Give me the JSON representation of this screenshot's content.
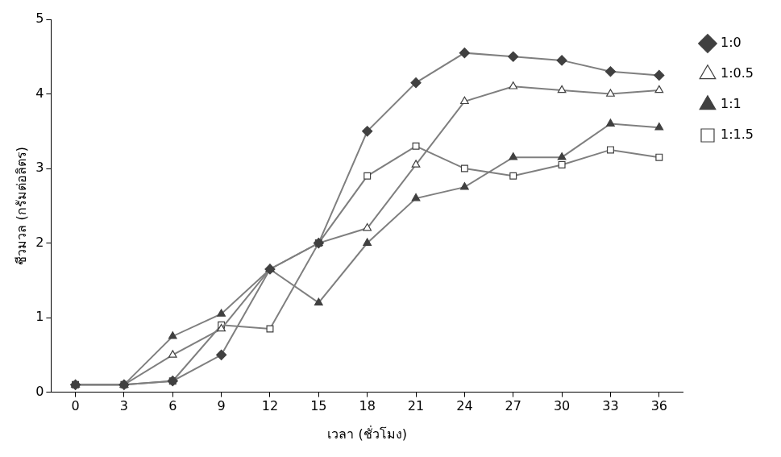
{
  "chart_data": {
    "type": "line",
    "x_label": "เวลา (ชั่วโมง)",
    "y_label": "ชีวมวล (กรัมต่อลิตร)",
    "categories": [
      0,
      3,
      6,
      9,
      12,
      15,
      18,
      21,
      24,
      27,
      30,
      33,
      36
    ],
    "ylim": [
      0,
      5
    ],
    "yticks": [
      0,
      1,
      2,
      3,
      4,
      5
    ],
    "grid": false,
    "legend": "right",
    "series": [
      {
        "name": "1:0",
        "color": "#7f7f7f",
        "marker": "diamond",
        "values": [
          0.1,
          0.1,
          0.15,
          0.5,
          1.65,
          2.0,
          3.5,
          4.15,
          4.55,
          4.5,
          4.45,
          4.3,
          4.25
        ]
      },
      {
        "name": "1:0.5",
        "color": "#7f7f7f",
        "marker": "triangle-open",
        "values": [
          0.1,
          0.1,
          0.5,
          0.85,
          1.65,
          2.0,
          2.2,
          3.05,
          3.9,
          4.1,
          4.05,
          4.0,
          4.05
        ]
      },
      {
        "name": "1:1",
        "color": "#7f7f7f",
        "marker": "triangle",
        "values": [
          0.1,
          0.1,
          0.75,
          1.05,
          1.65,
          1.2,
          2.0,
          2.6,
          2.75,
          3.15,
          3.15,
          3.6,
          3.55
        ]
      },
      {
        "name": "1:1.5",
        "color": "#7f7f7f",
        "marker": "square-open",
        "values": [
          0.1,
          0.1,
          0.15,
          0.9,
          0.85,
          2.0,
          2.9,
          3.3,
          3.0,
          2.9,
          3.05,
          3.25,
          3.15
        ]
      }
    ]
  }
}
